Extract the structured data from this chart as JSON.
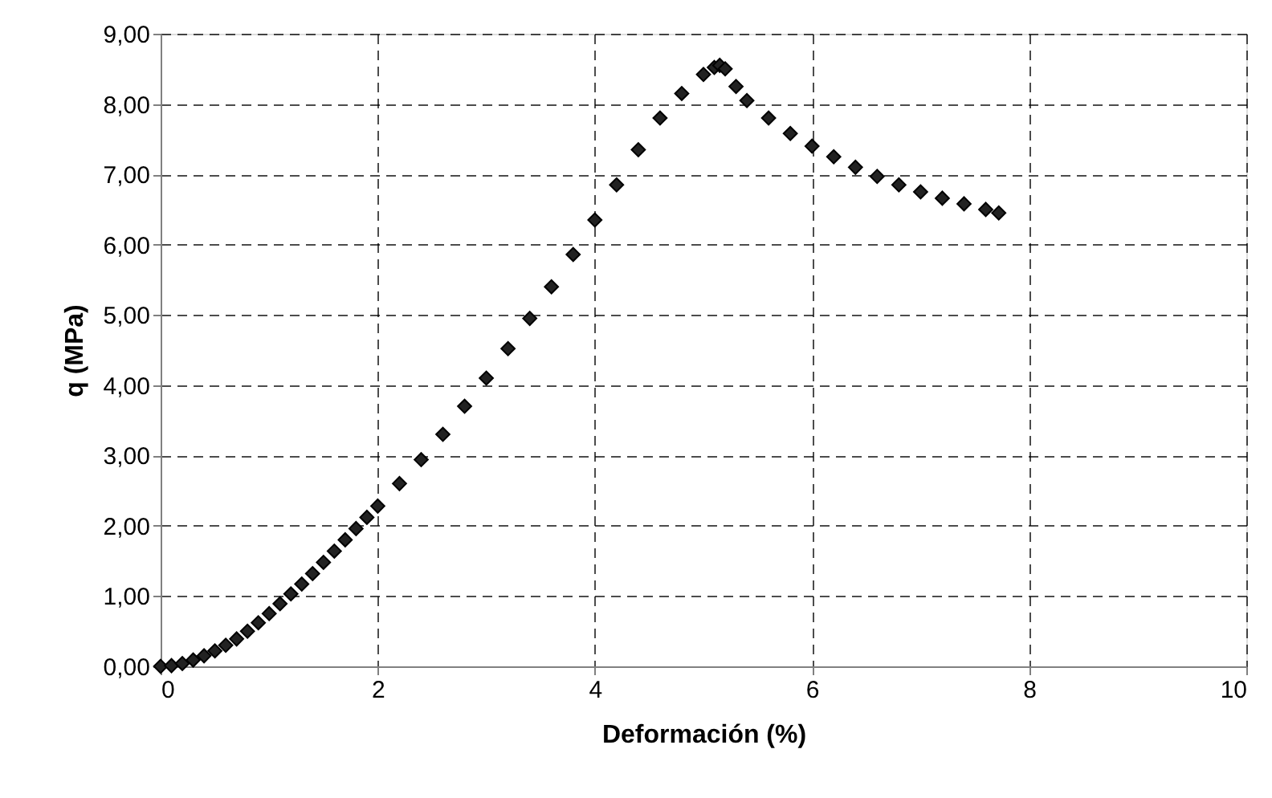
{
  "chart_data": {
    "type": "scatter",
    "xlabel": "Deformación (%)",
    "ylabel": "q (MPa)",
    "x": [
      0,
      0.1,
      0.2,
      0.3,
      0.4,
      0.5,
      0.6,
      0.7,
      0.8,
      0.9,
      1.0,
      1.1,
      1.2,
      1.3,
      1.4,
      1.5,
      1.6,
      1.7,
      1.8,
      1.9,
      2.0,
      2.2,
      2.4,
      2.6,
      2.8,
      3.0,
      3.2,
      3.4,
      3.6,
      3.8,
      4.0,
      4.2,
      4.4,
      4.6,
      4.8,
      5.0,
      5.1,
      5.15,
      5.2,
      5.3,
      5.4,
      5.6,
      5.8,
      6.0,
      6.2,
      6.4,
      6.6,
      6.8,
      7.0,
      7.2,
      7.4,
      7.6,
      7.72
    ],
    "series": [
      {
        "color": "#222222",
        "values": [
          0,
          0.01,
          0.04,
          0.09,
          0.15,
          0.22,
          0.3,
          0.39,
          0.5,
          0.62,
          0.75,
          0.89,
          1.03,
          1.17,
          1.32,
          1.48,
          1.64,
          1.8,
          1.96,
          2.12,
          2.28,
          2.6,
          2.94,
          3.3,
          3.7,
          4.1,
          4.52,
          4.95,
          5.4,
          5.86,
          6.35,
          6.85,
          7.35,
          7.8,
          8.15,
          8.42,
          8.52,
          8.55,
          8.5,
          8.25,
          8.05,
          7.8,
          7.58,
          7.4,
          7.25,
          7.1,
          6.97,
          6.85,
          6.75,
          6.66,
          6.58,
          6.5,
          6.45
        ]
      }
    ],
    "marker": "diamond",
    "grid": true,
    "xlim": [
      0,
      10
    ],
    "xticks": [
      0,
      2,
      4,
      6,
      8,
      10
    ],
    "ylim": [
      0,
      9
    ],
    "yticks": [
      {
        "value": 0,
        "label": "0,00"
      },
      {
        "value": 1,
        "label": "1,00"
      },
      {
        "value": 2,
        "label": "2,00"
      },
      {
        "value": 3,
        "label": "3,00"
      },
      {
        "value": 4,
        "label": "4,00"
      },
      {
        "value": 5,
        "label": "5,00"
      },
      {
        "value": 6,
        "label": "6,00"
      },
      {
        "value": 7,
        "label": "7,00"
      },
      {
        "value": 8,
        "label": "8,00"
      },
      {
        "value": 9,
        "label": "9,00"
      }
    ]
  }
}
